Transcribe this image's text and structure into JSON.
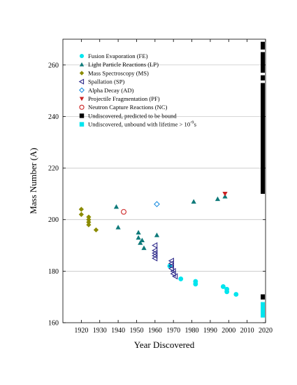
{
  "chart_data": {
    "type": "scatter",
    "title": "",
    "xlabel": "Year Discovered",
    "ylabel": "Mass Number (A)",
    "xlim": [
      1910,
      2020
    ],
    "ylim": [
      160,
      270
    ],
    "xticks": [
      1920,
      1930,
      1940,
      1950,
      1960,
      1970,
      1980,
      1990,
      2000,
      2010,
      2020
    ],
    "yticks": [
      160,
      180,
      200,
      220,
      240,
      260
    ],
    "grid": "horizontal",
    "legend_position": "top-left",
    "series": [
      {
        "name": "Fusion Evaporation (FE)",
        "marker": "circle",
        "color": "#00e5ee",
        "points": [
          [
            1968,
            182
          ],
          [
            1974,
            177
          ],
          [
            1982,
            176
          ],
          [
            1982,
            175
          ],
          [
            1997,
            174
          ],
          [
            1999,
            173
          ],
          [
            1999,
            172
          ],
          [
            2004,
            171
          ]
        ]
      },
      {
        "name": "Light Particle Reactions (LP)",
        "marker": "triangle-up",
        "color": "#0e7a7a",
        "points": [
          [
            1939,
            205
          ],
          [
            1940,
            197
          ],
          [
            1951,
            195
          ],
          [
            1951,
            193
          ],
          [
            1952,
            191
          ],
          [
            1953,
            192
          ],
          [
            1954,
            189
          ],
          [
            1961,
            194
          ],
          [
            1981,
            207
          ],
          [
            1994,
            208
          ],
          [
            1998,
            209
          ]
        ]
      },
      {
        "name": "Mass Spectroscopy (MS)",
        "marker": "diamond",
        "color": "#8b8b00",
        "points": [
          [
            1920,
            204
          ],
          [
            1920,
            202
          ],
          [
            1924,
            201
          ],
          [
            1924,
            200
          ],
          [
            1924,
            199
          ],
          [
            1924,
            198
          ],
          [
            1928,
            196
          ]
        ]
      },
      {
        "name": "Spallation (SP)",
        "marker": "triangle-left",
        "color": "#2e2a8a",
        "points": [
          [
            1960,
            190
          ],
          [
            1960,
            188
          ],
          [
            1960,
            187
          ],
          [
            1960,
            186
          ],
          [
            1960,
            185
          ],
          [
            1969,
            184
          ],
          [
            1969,
            183
          ],
          [
            1969,
            182
          ],
          [
            1969,
            181
          ],
          [
            1970,
            180
          ],
          [
            1970,
            179
          ],
          [
            1971,
            178
          ]
        ]
      },
      {
        "name": "Alpha Decay (AD)",
        "marker": "diamond-open",
        "color": "#1f8fe0",
        "points": [
          [
            1961,
            206
          ]
        ]
      },
      {
        "name": "Projectile Fragmentation (PF)",
        "marker": "triangle-down",
        "color": "#cc2222",
        "points": [
          [
            1998,
            210
          ]
        ]
      },
      {
        "name": "Neutron Capture Reactions (NC)",
        "marker": "circle-open",
        "color": "#cc2222",
        "points": [
          [
            1943,
            203
          ]
        ]
      },
      {
        "name": "Undiscovered, predicted to be bound",
        "marker": "square",
        "color": "#000000",
        "ranges": [
          [
            210,
            253
          ],
          [
            254,
            256
          ],
          [
            257,
            265
          ],
          [
            266,
            269
          ],
          [
            169,
            171
          ]
        ]
      },
      {
        "name": "Undiscovered, unbound with lifetime > 10",
        "name_superscript": "-9",
        "name_suffix": "s",
        "marker": "square",
        "color": "#00e5ee",
        "ranges": [
          [
            162,
            168
          ]
        ]
      }
    ]
  }
}
